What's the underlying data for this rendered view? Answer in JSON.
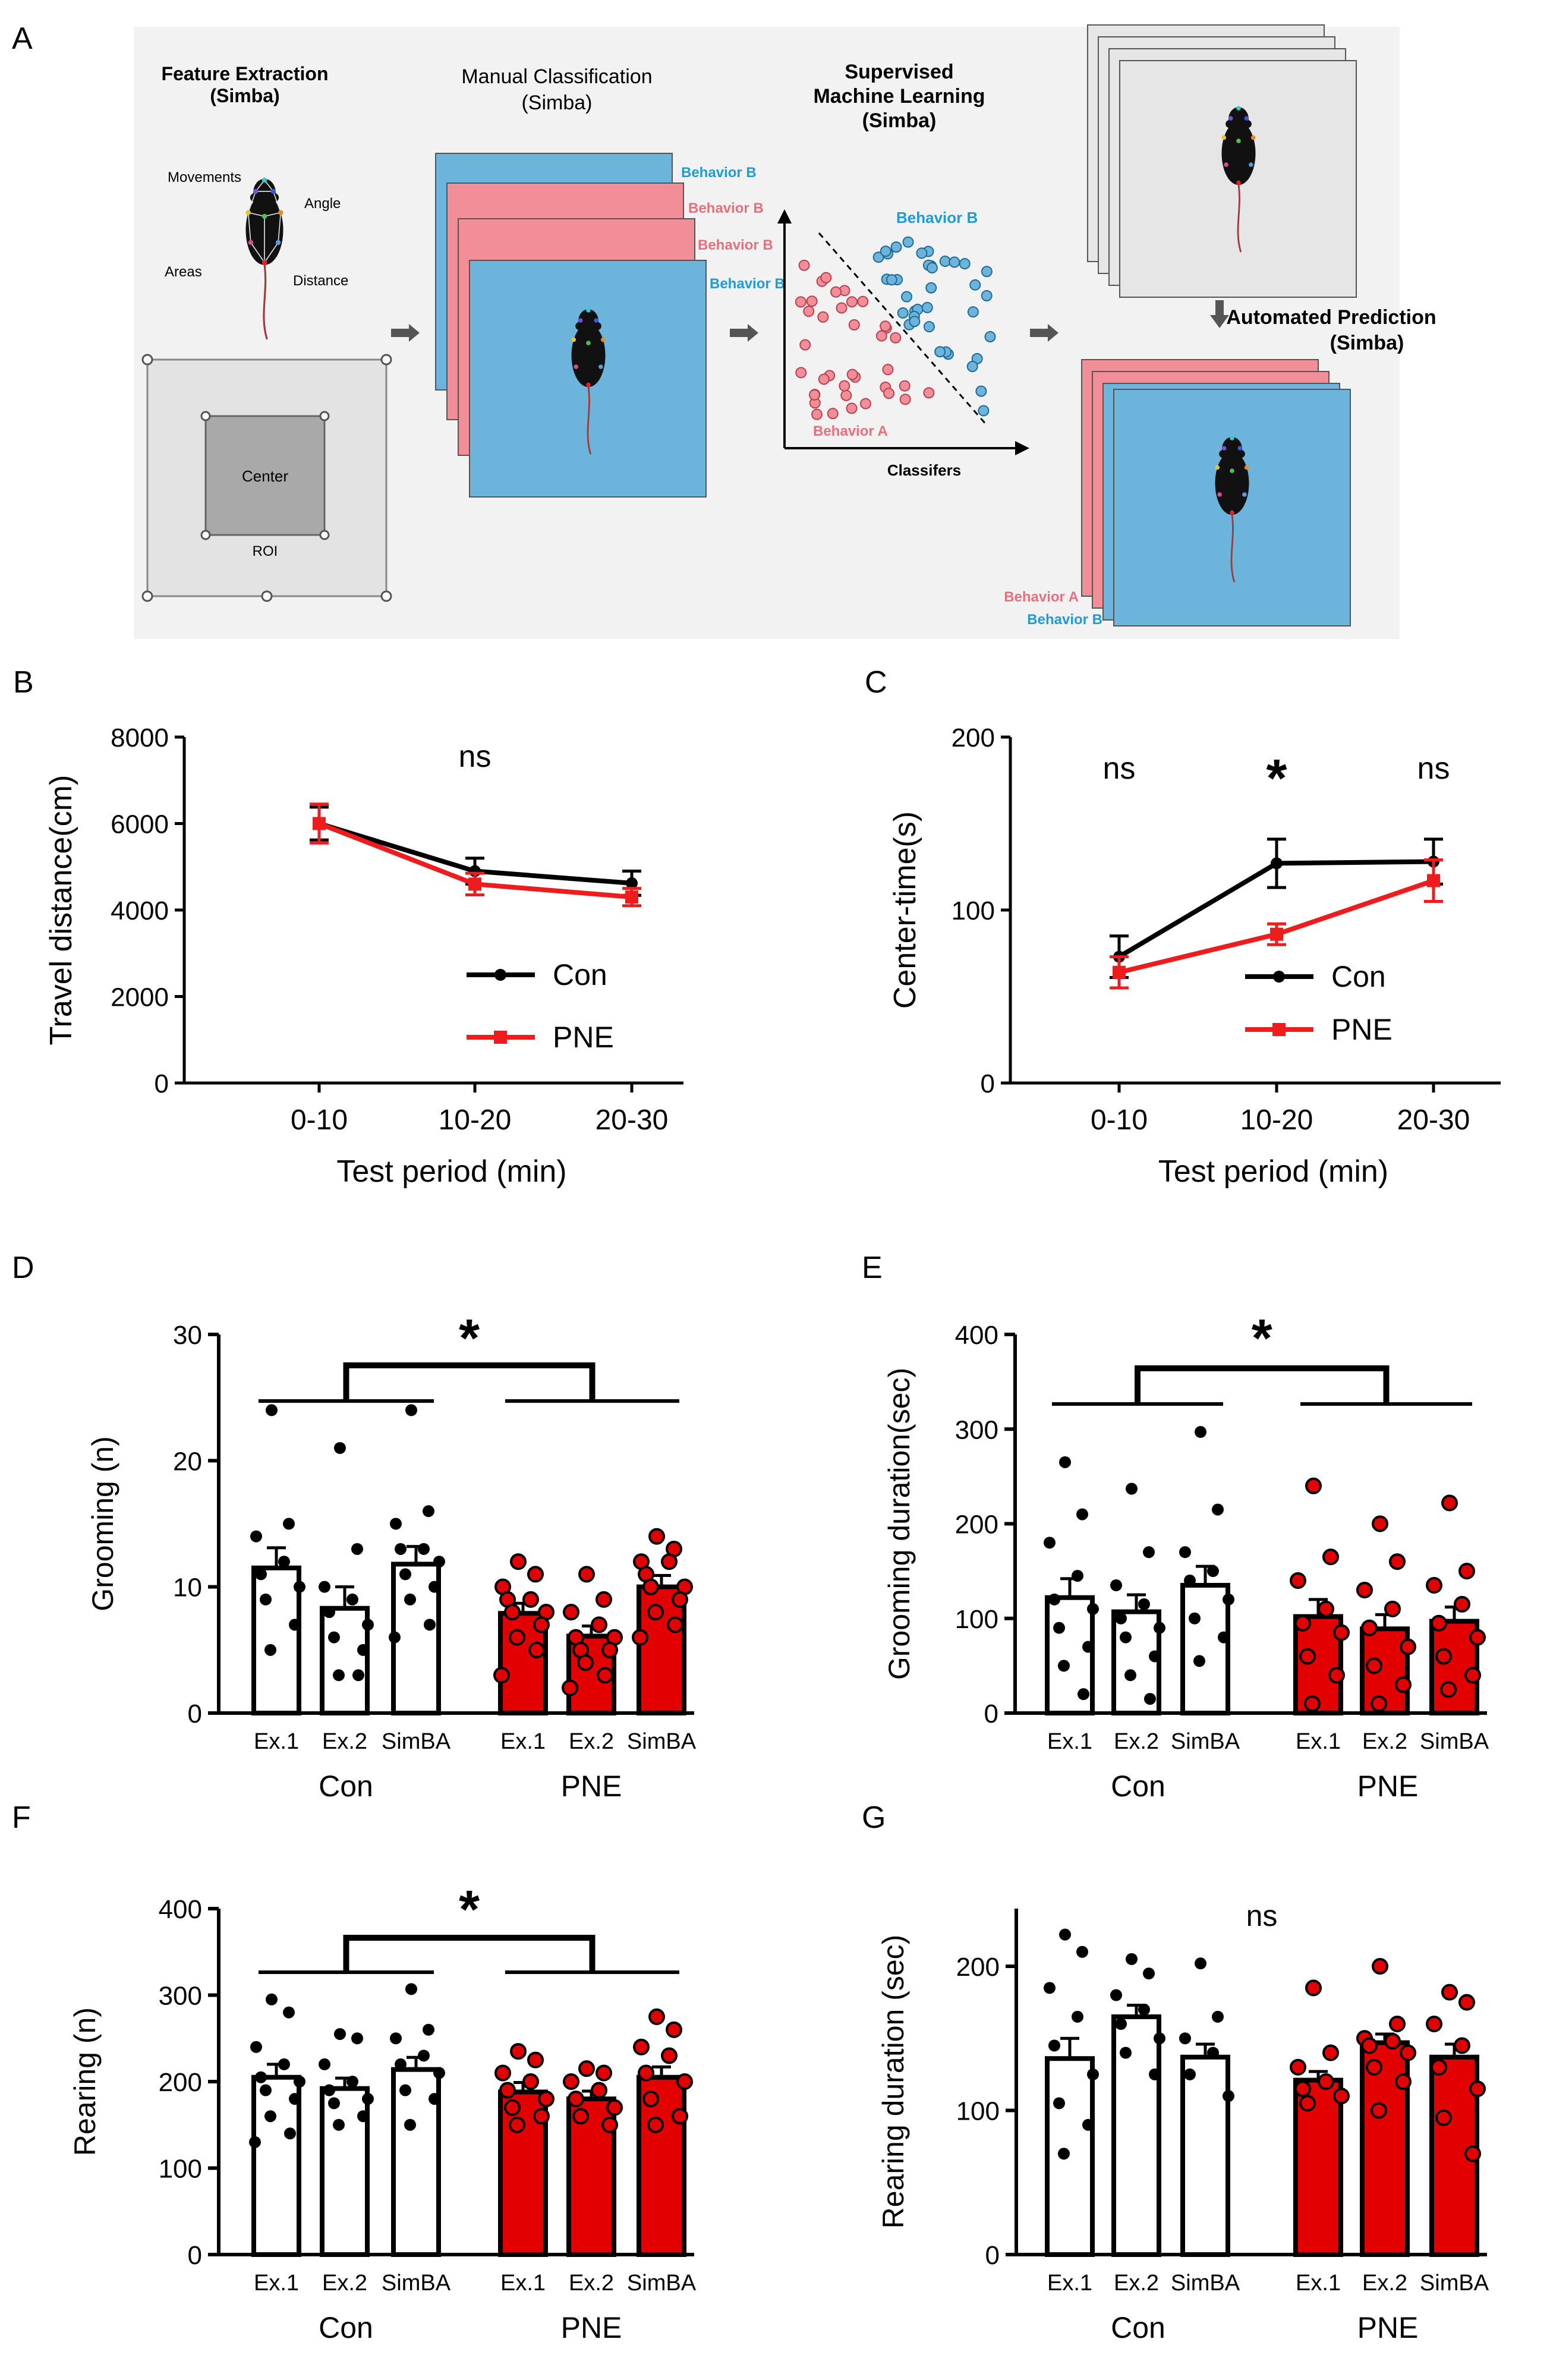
{
  "colors": {
    "con": "#000000",
    "pne": "#ee1c1c",
    "pne_fill": "#e20000",
    "behavior_a": "#e8707c",
    "behavior_b": "#1f9bd6",
    "pink": "#f28e98",
    "blue": "#6cb4dc",
    "panel_bg": "#f2f2f2"
  },
  "panel_a": {
    "letter": "A",
    "feature_title": "Feature Extraction",
    "feature_sub": "(Simba)",
    "mouse_labels": [
      "Movements",
      "Angle",
      "Areas",
      "Distance"
    ],
    "center_label": "Center",
    "roi_label": "ROI",
    "manual_title": "Manual Classification",
    "manual_sub": "(Simba)",
    "stack_labels": [
      "Behavior B",
      "Behavior B",
      "Behavior B",
      "Behavior B"
    ],
    "sml_title_1": "Supervised",
    "sml_title_2": "Machine Learning",
    "sml_sub": "(Simba)",
    "scatter_b_label": "Behavior B",
    "scatter_a_label": "Behavior A",
    "classifiers_label": "Classifers",
    "auto_title": "Automated Prediction",
    "auto_sub": "(Simba)",
    "out_label_a": "Behavior A",
    "out_label_b": "Behavior B"
  },
  "chart_data": [
    {
      "id": "B",
      "letter": "B",
      "type": "line",
      "ylabel": "Travel distance(cm)",
      "xlabel": "Test period (min)",
      "categories": [
        "0-10",
        "10-20",
        "20-30"
      ],
      "ylim": [
        0,
        8000
      ],
      "yticks": [
        0,
        2000,
        4000,
        6000,
        8000
      ],
      "series": [
        {
          "name": "Con",
          "values": [
            6000,
            4900,
            4620
          ],
          "errors": [
            380,
            300,
            280
          ]
        },
        {
          "name": "PNE",
          "values": [
            6000,
            4600,
            4300
          ],
          "errors": [
            450,
            250,
            200
          ]
        }
      ],
      "annotations": [
        "ns"
      ],
      "legend": "right"
    },
    {
      "id": "C",
      "letter": "C",
      "type": "line",
      "ylabel": "Center-time(s)",
      "xlabel": "Test period (min)",
      "categories": [
        "0-10",
        "10-20",
        "20-30"
      ],
      "ylim": [
        0,
        200
      ],
      "yticks": [
        0,
        100,
        200
      ],
      "series": [
        {
          "name": "Con",
          "values": [
            73,
            127,
            128
          ],
          "errors": [
            12,
            14,
            13
          ]
        },
        {
          "name": "PNE",
          "values": [
            64,
            86,
            117
          ],
          "errors": [
            9,
            6,
            12
          ]
        }
      ],
      "annotations": [
        "ns",
        "*",
        "ns"
      ],
      "legend": "right"
    },
    {
      "id": "D",
      "letter": "D",
      "type": "bar",
      "ylabel": "Grooming (n)",
      "ylim": [
        0,
        30
      ],
      "yticks": [
        0,
        10,
        20,
        30
      ],
      "categories": [
        "Ex.1",
        "Ex.2",
        "SimBA",
        "Ex.1",
        "Ex.2",
        "SimBA"
      ],
      "groups": [
        "Con",
        "PNE"
      ],
      "values": [
        11.5,
        8.3,
        11.8,
        7.9,
        6.1,
        10.0
      ],
      "errors": [
        1.6,
        1.7,
        1.4,
        0.8,
        0.8,
        0.9
      ],
      "points": [
        [
          24,
          15,
          14,
          12,
          11,
          10,
          9,
          7,
          5
        ],
        [
          21,
          13,
          10,
          9,
          8,
          7,
          6,
          5,
          3,
          3
        ],
        [
          24,
          16,
          15,
          13,
          13,
          12,
          11,
          10,
          9,
          7,
          6
        ],
        [
          12,
          11,
          10,
          9,
          9,
          8,
          8,
          7,
          6,
          5,
          3
        ],
        [
          11,
          9,
          8,
          7,
          6,
          6,
          5,
          5,
          4,
          3,
          2
        ],
        [
          14,
          13,
          12,
          12,
          11,
          10,
          10,
          9,
          8,
          7,
          6
        ]
      ],
      "annotations": [
        "*"
      ]
    },
    {
      "id": "E",
      "letter": "E",
      "type": "bar",
      "ylabel": "Grooming  duration(sec)",
      "ylim": [
        0,
        400
      ],
      "yticks": [
        0,
        100,
        200,
        300,
        400
      ],
      "categories": [
        "Ex.1",
        "Ex.2",
        "SimBA",
        "Ex.1",
        "Ex.2",
        "SimBA"
      ],
      "groups": [
        "Con",
        "PNE"
      ],
      "values": [
        122,
        107,
        135,
        102,
        89,
        97
      ],
      "errors": [
        20,
        18,
        20,
        18,
        15,
        15
      ],
      "points": [
        [
          265,
          210,
          180,
          145,
          120,
          110,
          90,
          70,
          50,
          20
        ],
        [
          237,
          170,
          135,
          115,
          100,
          90,
          80,
          60,
          40,
          15
        ],
        [
          297,
          215,
          170,
          150,
          140,
          120,
          100,
          80,
          55
        ],
        [
          240,
          165,
          140,
          110,
          95,
          85,
          60,
          40,
          10
        ],
        [
          200,
          160,
          130,
          110,
          90,
          70,
          50,
          30,
          10
        ],
        [
          222,
          150,
          135,
          115,
          95,
          80,
          60,
          40,
          25
        ]
      ],
      "annotations": [
        "*"
      ]
    },
    {
      "id": "F",
      "letter": "F",
      "type": "bar",
      "ylabel": "Rearing (n)",
      "ylim": [
        0,
        400
      ],
      "yticks": [
        0,
        100,
        200,
        300,
        400
      ],
      "categories": [
        "Ex.1",
        "Ex.2",
        "SimBA",
        "Ex.1",
        "Ex.2",
        "SimBA"
      ],
      "groups": [
        "Con",
        "PNE"
      ],
      "values": [
        205,
        192,
        214,
        188,
        180,
        205
      ],
      "errors": [
        15,
        12,
        14,
        11,
        9,
        12
      ],
      "points": [
        [
          295,
          280,
          240,
          220,
          205,
          200,
          190,
          180,
          160,
          140,
          130
        ],
        [
          255,
          250,
          220,
          200,
          190,
          180,
          175,
          160,
          150
        ],
        [
          307,
          260,
          250,
          230,
          220,
          210,
          190,
          180,
          150
        ],
        [
          235,
          225,
          210,
          200,
          190,
          180,
          170,
          160,
          150
        ],
        [
          215,
          210,
          200,
          190,
          180,
          170,
          160,
          150
        ],
        [
          275,
          260,
          240,
          230,
          210,
          200,
          180,
          160,
          150
        ]
      ],
      "annotations": [
        "*"
      ]
    },
    {
      "id": "G",
      "letter": "G",
      "type": "bar",
      "ylabel": "Rearing duration (sec)",
      "ylim": [
        0,
        240
      ],
      "yticks": [
        0,
        100,
        200
      ],
      "categories": [
        "Ex.1",
        "Ex.2",
        "SimBA",
        "Ex.1",
        "Ex.2",
        "SimBA"
      ],
      "groups": [
        "Con",
        "PNE"
      ],
      "values": [
        136,
        165,
        137,
        121,
        147,
        137
      ],
      "errors": [
        14,
        8,
        9,
        6,
        6,
        9
      ],
      "points": [
        [
          222,
          210,
          185,
          165,
          145,
          125,
          105,
          90,
          70
        ],
        [
          205,
          195,
          180,
          170,
          160,
          150,
          140,
          125
        ],
        [
          202,
          165,
          150,
          140,
          125,
          110
        ],
        [
          185,
          140,
          130,
          120,
          115,
          110,
          105
        ],
        [
          200,
          160,
          150,
          148,
          145,
          140,
          130,
          120,
          100
        ],
        [
          182,
          175,
          160,
          145,
          130,
          115,
          95,
          70
        ]
      ],
      "annotations": [
        "ns"
      ]
    }
  ]
}
